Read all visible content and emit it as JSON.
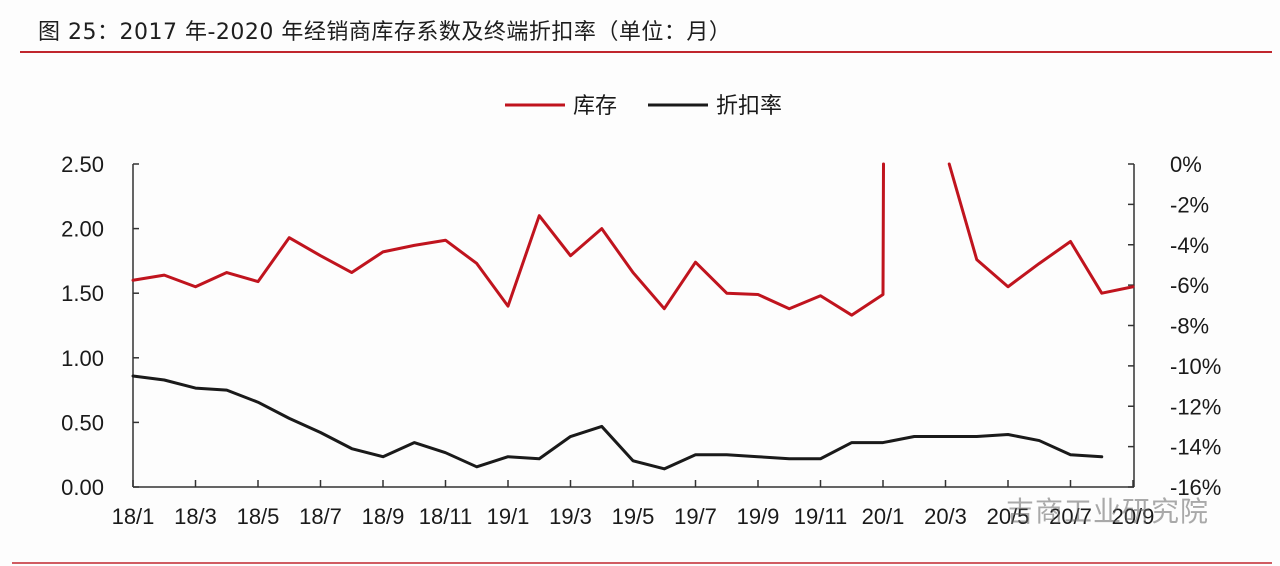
{
  "title": "图 25：2017 年-2020 年经销商库存系数及终端折扣率（单位：月）",
  "watermark": "吉商工业研究院",
  "colors": {
    "inventory": "#c0141e",
    "discount": "#1a1a1a",
    "rule": "#c0262d"
  },
  "chart_data": {
    "type": "line",
    "title": "2017年-2020年经销商库存系数及终端折扣率（单位：月）",
    "legend": [
      "库存",
      "折扣率"
    ],
    "legend_position": "top",
    "x": [
      "18/1",
      "18/2",
      "18/3",
      "18/4",
      "18/5",
      "18/6",
      "18/7",
      "18/8",
      "18/9",
      "18/10",
      "18/11",
      "18/12",
      "19/1",
      "19/2",
      "19/3",
      "19/4",
      "19/5",
      "19/6",
      "19/7",
      "19/8",
      "19/9",
      "19/10",
      "19/11",
      "19/12",
      "20/1",
      "20/2",
      "20/3",
      "20/4",
      "20/5",
      "20/6",
      "20/7",
      "20/8",
      "20/9"
    ],
    "x_tick_labels": [
      "18/1",
      "18/3",
      "18/5",
      "18/7",
      "18/9",
      "18/11",
      "19/1",
      "19/3",
      "19/5",
      "19/7",
      "19/9",
      "19/11",
      "20/1",
      "20/3",
      "20/5",
      "20/7",
      "20/9"
    ],
    "y_left": {
      "label": "",
      "ticks": [
        "0.00",
        "0.50",
        "1.00",
        "1.50",
        "2.00",
        "2.50"
      ],
      "range": [
        0,
        2.5
      ]
    },
    "y_right": {
      "label": "",
      "ticks": [
        "0%",
        "-2%",
        "-4%",
        "-6%",
        "-8%",
        "-10%",
        "-12%",
        "-14%",
        "-16%"
      ],
      "range": [
        -16,
        0
      ]
    },
    "grid": false,
    "series": [
      {
        "name": "库存",
        "axis": "left",
        "values": [
          1.6,
          1.64,
          1.55,
          1.66,
          1.59,
          1.93,
          1.79,
          1.66,
          1.82,
          1.87,
          1.91,
          1.73,
          1.4,
          2.1,
          1.79,
          2.0,
          1.66,
          1.38,
          1.74,
          1.5,
          1.49,
          1.38,
          1.48,
          1.33,
          1.49,
          null,
          2.6,
          1.76,
          1.55,
          1.73,
          1.9,
          1.5,
          1.55
        ],
        "note": "20/2 value exceeds axis maximum (off-chart spike)"
      },
      {
        "name": "折扣率",
        "axis": "right",
        "unit": "%",
        "values": [
          -10.5,
          -10.7,
          -11.1,
          -11.2,
          -11.8,
          -12.6,
          -13.3,
          -14.1,
          -14.5,
          -13.8,
          -14.3,
          -15.0,
          -14.5,
          -14.6,
          -13.5,
          -13.0,
          -14.7,
          -15.1,
          -14.4,
          -14.4,
          -14.5,
          -14.6,
          -14.6,
          -13.8,
          -13.8,
          -13.5,
          -13.5,
          -13.5,
          -13.4,
          -13.7,
          -14.4,
          -14.5,
          null
        ]
      }
    ]
  }
}
